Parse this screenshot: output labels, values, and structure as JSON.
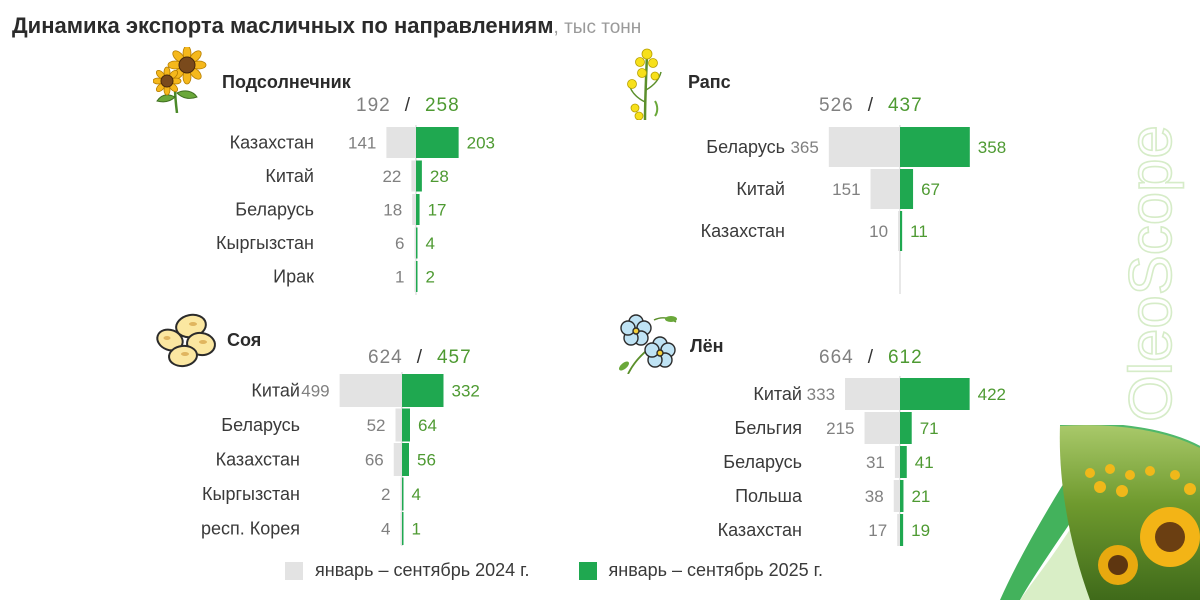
{
  "title": {
    "main": "Динамика экспорта масличных по направлениям",
    "unit": ", тыс тонн"
  },
  "brand": "OleoScope",
  "legend": {
    "y2024": "январь – сентябрь 2024 г.",
    "y2025": "январь – сентябрь 2025 г."
  },
  "colors": {
    "y2024": "#e3e3e3",
    "y2025": "#1fa850",
    "label2025": "#4e9a32",
    "label2024": "#808080"
  },
  "icons": [
    "sunflower-icon",
    "rapeseed-icon",
    "soybean-icon",
    "flax-flower-icon"
  ],
  "chart_data": [
    {
      "type": "bar",
      "title": "Подсолнечник",
      "total_2024": "192",
      "total_2025": "258",
      "categories": [
        "Казахстан",
        "Китай",
        "Беларусь",
        "Кыргызстан",
        "Ирак"
      ],
      "series": [
        {
          "name": "январь – сентябрь 2024 г.",
          "values": [
            141,
            22,
            18,
            6,
            1
          ]
        },
        {
          "name": "январь – сентябрь 2025 г.",
          "values": [
            203,
            28,
            17,
            4,
            2
          ]
        }
      ]
    },
    {
      "type": "bar",
      "title": "Рапс",
      "total_2024": "526",
      "total_2025": "437",
      "categories": [
        "Беларусь",
        "Китай",
        "Казахстан"
      ],
      "series": [
        {
          "name": "январь – сентябрь 2024 г.",
          "values": [
            365,
            151,
            10
          ]
        },
        {
          "name": "январь – сентябрь 2025 г.",
          "values": [
            358,
            67,
            11
          ]
        }
      ]
    },
    {
      "type": "bar",
      "title": "Соя",
      "total_2024": "624",
      "total_2025": "457",
      "categories": [
        "Китай",
        "Беларусь",
        "Казахстан",
        "Кыргызстан",
        "респ. Корея"
      ],
      "series": [
        {
          "name": "январь – сентябрь 2024 г.",
          "values": [
            499,
            52,
            66,
            2,
            4
          ]
        },
        {
          "name": "январь – сентябрь 2025 г.",
          "values": [
            332,
            64,
            56,
            4,
            1
          ]
        }
      ]
    },
    {
      "type": "bar",
      "title": "Лён",
      "total_2024": "664",
      "total_2025": "612",
      "categories": [
        "Китай",
        "Бельгия",
        "Беларусь",
        "Польша",
        "Казахстан"
      ],
      "series": [
        {
          "name": "январь – сентябрь 2024 г.",
          "values": [
            333,
            215,
            31,
            38,
            17
          ]
        },
        {
          "name": "январь – сентябрь 2025 г.",
          "values": [
            422,
            71,
            41,
            21,
            19
          ]
        }
      ]
    }
  ]
}
